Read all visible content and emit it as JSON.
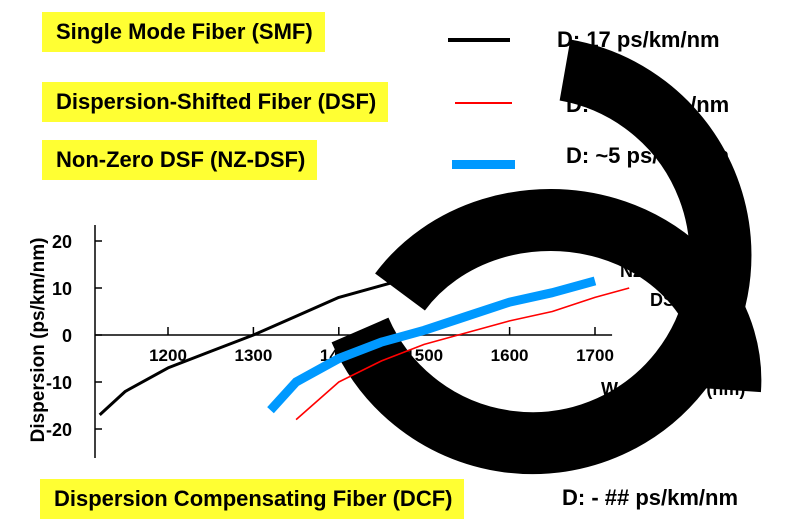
{
  "legend": [
    {
      "label": "Single Mode Fiber (SMF)",
      "dispersion": "D: 17 ps/km/nm",
      "color": "#000000"
    },
    {
      "label": "Dispersion-Shifted Fiber (DSF)",
      "dispersion": "D: ~0 ps/km/nm",
      "color": "#ff0000"
    },
    {
      "label": "Non-Zero DSF (NZ-DSF)",
      "dispersion": "D: ~5 ps/km/nm",
      "color": "#0099ff"
    }
  ],
  "footer": {
    "label": "Dispersion Compensating Fiber (DCF)",
    "dispersion": "D: - ## ps/km/nm"
  },
  "colors": {
    "highlight": "#ffff33",
    "watermark": "#000000"
  },
  "chart_data": {
    "type": "line",
    "xlabel": "Wavelength (nm)",
    "ylabel": "Dispersion (ps/km/nm)",
    "x_ticks": [
      1200,
      1300,
      1400,
      1500,
      1600,
      1700
    ],
    "y_ticks": [
      20,
      10,
      0,
      -10,
      -20
    ],
    "xlim": [
      1100,
      1750
    ],
    "ylim": [
      -22,
      22
    ],
    "grid": false,
    "series": [
      {
        "name": "SMF",
        "color": "#000000",
        "x": [
          1120,
          1150,
          1200,
          1250,
          1300,
          1350,
          1400,
          1450,
          1500,
          1550,
          1600,
          1650,
          1700
        ],
        "y": [
          -17,
          -12,
          -7,
          -3.5,
          0,
          4,
          8,
          10.5,
          13,
          15.5,
          17.5,
          19,
          20.5
        ]
      },
      {
        "name": "NZ-DSF",
        "color": "#0099ff",
        "x": [
          1320,
          1350,
          1400,
          1450,
          1500,
          1550,
          1600,
          1650,
          1700
        ],
        "y": [
          -16,
          -10,
          -5,
          -1.5,
          1,
          4,
          7,
          9,
          11.5
        ]
      },
      {
        "name": "DSF",
        "color": "#ff0000",
        "x": [
          1350,
          1400,
          1450,
          1500,
          1550,
          1600,
          1650,
          1700,
          1740
        ],
        "y": [
          -18,
          -10,
          -5.5,
          -2,
          0.5,
          3,
          5,
          8,
          10
        ]
      }
    ]
  }
}
